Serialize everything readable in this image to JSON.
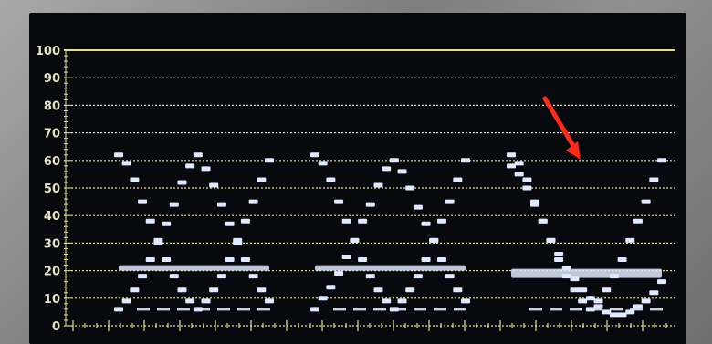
{
  "scope": {
    "y_scale": {
      "ticks": [
        "100",
        "90",
        "80",
        "70",
        "60",
        "50",
        "40",
        "30",
        "20",
        "10",
        "0"
      ],
      "range": [
        0,
        100
      ]
    },
    "colors": {
      "graticule": "#e2df96",
      "trace": "#dfe9ff",
      "arrow": "#ff2a1a"
    }
  },
  "chart_data": {
    "type": "scatter",
    "ylim": [
      0,
      100
    ],
    "series": [
      {
        "x": [
          1,
          2,
          3,
          4,
          5,
          6,
          7,
          8,
          9,
          10,
          11,
          12,
          13,
          14,
          15,
          16,
          17,
          18,
          19,
          20
        ],
        "y": [
          6,
          9,
          13,
          18,
          24,
          30,
          37,
          44,
          52,
          58,
          62,
          57,
          51,
          44,
          37,
          30,
          24,
          18,
          13,
          9
        ]
      },
      {
        "x": [
          1,
          2,
          3,
          4,
          5,
          6,
          7,
          8,
          9,
          10,
          11,
          12,
          13,
          14,
          15,
          16,
          17,
          18,
          19,
          20
        ],
        "y": [
          62,
          59,
          53,
          45,
          38,
          31,
          24,
          18,
          13,
          9,
          6,
          9,
          13,
          18,
          24,
          31,
          38,
          45,
          53,
          60
        ]
      },
      {
        "x": [
          1,
          2,
          3,
          4,
          5,
          6,
          7,
          8,
          9,
          10,
          11,
          12,
          13,
          14,
          15,
          16,
          17,
          18,
          19,
          20
        ],
        "y": [
          58,
          55,
          50,
          44,
          38,
          31,
          26,
          21,
          17,
          13,
          10,
          7,
          5,
          4,
          4,
          5,
          7,
          9,
          12,
          16
        ]
      },
      {
        "x": [
          1,
          2,
          3,
          4,
          5,
          6,
          7,
          8,
          9,
          10,
          11,
          12,
          13,
          14,
          15,
          16,
          17,
          18,
          19,
          20
        ],
        "y": [
          6,
          10,
          14,
          19,
          25,
          31,
          38,
          44,
          51,
          57,
          60,
          56,
          50,
          43,
          37,
          31,
          24,
          18,
          13,
          9
        ]
      }
    ],
    "annotation": {
      "type": "arrow",
      "target_value": 59
    }
  }
}
